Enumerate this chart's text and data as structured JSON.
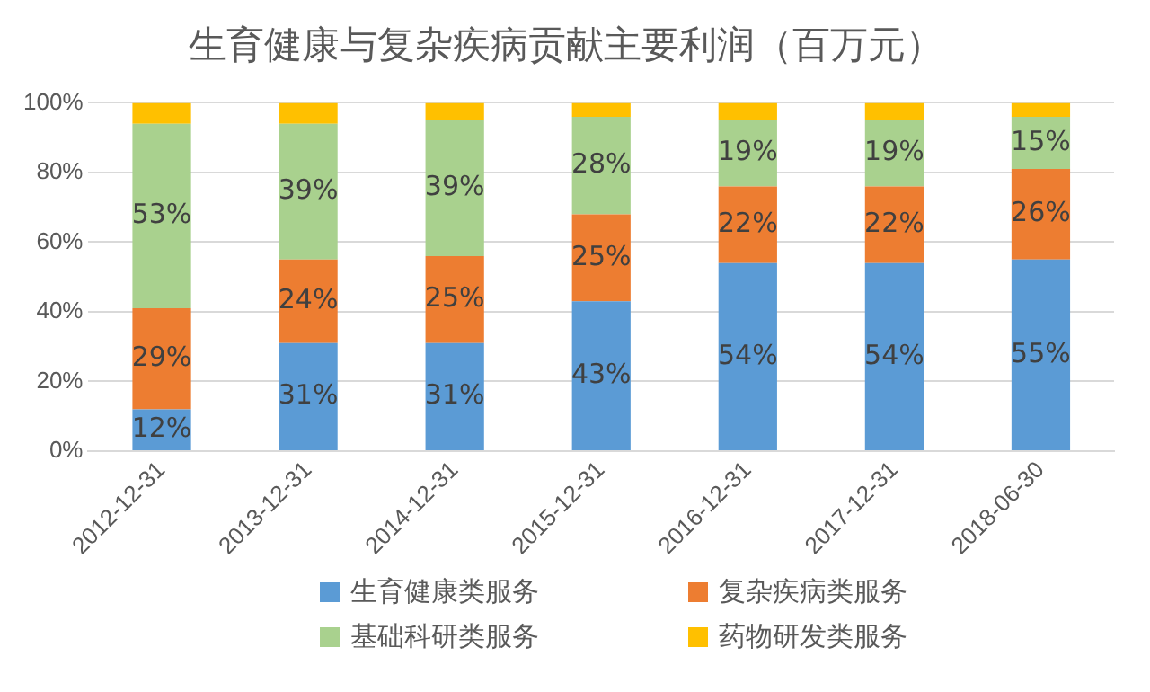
{
  "chart_data": {
    "type": "bar",
    "title": "生育健康与复杂疾病贡献主要利润（百万元）",
    "stacked": true,
    "grid": "y",
    "legend": "bottom",
    "categories": [
      "2012-12-31",
      "2013-12-31",
      "2014-12-31",
      "2015-12-31",
      "2016-12-31",
      "2017-12-31",
      "2018-06-30"
    ],
    "ylim": [
      0,
      100
    ],
    "yticks": [
      {
        "value": 0,
        "label": "0%"
      },
      {
        "value": 20,
        "label": "20%"
      },
      {
        "value": 40,
        "label": "40%"
      },
      {
        "value": 60,
        "label": "60%"
      },
      {
        "value": 80,
        "label": "80%"
      },
      {
        "value": 100,
        "label": "100%"
      }
    ],
    "series": [
      {
        "name": "生育健康类服务",
        "color": "#5b9bd5",
        "values": [
          12,
          31,
          31,
          43,
          54,
          54,
          55
        ],
        "value_labels": [
          "12%",
          "31%",
          "31%",
          "43%",
          "54%",
          "54%",
          "55%"
        ]
      },
      {
        "name": "复杂疾病类服务",
        "color": "#ed7d31",
        "values": [
          29,
          24,
          25,
          25,
          22,
          22,
          26
        ],
        "value_labels": [
          "29%",
          "24%",
          "25%",
          "25%",
          "22%",
          "22%",
          "26%"
        ]
      },
      {
        "name": "基础科研类服务",
        "color": "#a9d18e",
        "values": [
          53,
          39,
          39,
          28,
          19,
          19,
          15
        ],
        "value_labels": [
          "53%",
          "39%",
          "39%",
          "28%",
          "19%",
          "19%",
          "15%"
        ]
      },
      {
        "name": "药物研发类服务",
        "color": "#ffc000",
        "values": [
          6,
          6,
          5,
          4,
          5,
          5,
          4
        ]
      }
    ]
  }
}
